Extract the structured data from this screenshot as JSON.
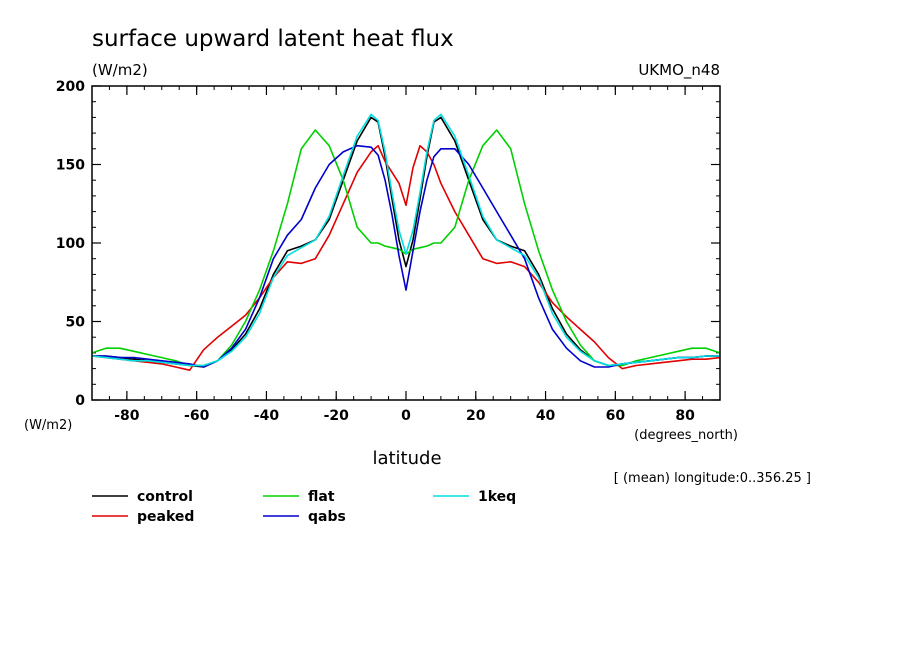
{
  "chart_data": {
    "type": "line",
    "title": "surface upward latent heat flux",
    "units_label": "(W/m2)",
    "model_label": "UKMO_n48",
    "y_units_label": "(W/m2)",
    "xlabel": "latitude",
    "x_units_label": "(degrees_north)",
    "annotation": "[ (mean) longitude:0..356.25 ]",
    "xlim": [
      -90,
      90
    ],
    "ylim": [
      0,
      200
    ],
    "x_ticks": [
      -80,
      -60,
      -40,
      -20,
      0,
      20,
      40,
      60,
      80
    ],
    "x_tick_labels": [
      "-80",
      "-60",
      "-40",
      "-20",
      "0",
      "20",
      "40",
      "60",
      "80"
    ],
    "y_ticks": [
      0,
      50,
      100,
      150,
      200
    ],
    "y_tick_labels": [
      "0",
      "50",
      "100",
      "150",
      "200"
    ],
    "x": [
      -90,
      -86,
      -82,
      -78,
      -74,
      -70,
      -66,
      -62,
      -58,
      -54,
      -50,
      -46,
      -42,
      -38,
      -34,
      -30,
      -26,
      -22,
      -18,
      -14,
      -10,
      -8,
      -6,
      -4,
      -2,
      0,
      2,
      4,
      6,
      8,
      10,
      14,
      18,
      22,
      26,
      30,
      34,
      38,
      42,
      46,
      50,
      54,
      58,
      62,
      66,
      70,
      74,
      78,
      82,
      86,
      90
    ],
    "series": [
      {
        "name": "control",
        "color": "#000000",
        "values": [
          28,
          28,
          27,
          26,
          25,
          24,
          23,
          22,
          21,
          25,
          32,
          42,
          58,
          80,
          95,
          98,
          102,
          115,
          140,
          165,
          180,
          177,
          155,
          128,
          102,
          85,
          102,
          128,
          155,
          177,
          180,
          165,
          140,
          115,
          102,
          98,
          95,
          80,
          58,
          42,
          32,
          25,
          22,
          23,
          24,
          25,
          26,
          27,
          27,
          28,
          28
        ]
      },
      {
        "name": "peaked",
        "color": "#e00000",
        "values": [
          28,
          27,
          26,
          25,
          24,
          23,
          21,
          19,
          32,
          40,
          47,
          54,
          65,
          78,
          88,
          87,
          90,
          105,
          125,
          145,
          158,
          162,
          152,
          145,
          138,
          124,
          148,
          162,
          158,
          150,
          138,
          120,
          105,
          90,
          87,
          88,
          85,
          75,
          62,
          53,
          45,
          37,
          27,
          20,
          22,
          23,
          24,
          25,
          26,
          26,
          27
        ]
      },
      {
        "name": "flat",
        "color": "#00d000",
        "values": [
          30,
          33,
          33,
          31,
          29,
          27,
          25,
          22,
          22,
          25,
          35,
          50,
          70,
          95,
          125,
          160,
          172,
          162,
          140,
          110,
          100,
          100,
          98,
          97,
          96,
          93,
          96,
          97,
          98,
          100,
          100,
          110,
          140,
          162,
          172,
          160,
          125,
          95,
          70,
          50,
          35,
          25,
          22,
          22,
          25,
          27,
          29,
          31,
          33,
          33,
          30
        ]
      },
      {
        "name": "qabs",
        "color": "#0000cc",
        "values": [
          28,
          28,
          27,
          27,
          26,
          25,
          24,
          23,
          21,
          25,
          33,
          45,
          65,
          90,
          105,
          115,
          135,
          150,
          158,
          162,
          161,
          156,
          140,
          118,
          92,
          70,
          95,
          120,
          140,
          155,
          160,
          160,
          150,
          135,
          120,
          105,
          90,
          65,
          45,
          33,
          25,
          21,
          21,
          23,
          24,
          25,
          26,
          27,
          27,
          28,
          28
        ]
      },
      {
        "name": "1keq",
        "color": "#00e0e0",
        "values": [
          28,
          27,
          26,
          25,
          25,
          24,
          23,
          22,
          22,
          25,
          31,
          40,
          55,
          78,
          92,
          97,
          102,
          117,
          143,
          168,
          182,
          178,
          158,
          132,
          108,
          93,
          108,
          132,
          158,
          178,
          182,
          168,
          143,
          117,
          102,
          97,
          92,
          78,
          55,
          40,
          31,
          25,
          22,
          23,
          24,
          25,
          26,
          27,
          27,
          28,
          28
        ]
      }
    ]
  }
}
